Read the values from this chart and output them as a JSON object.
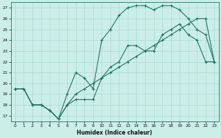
{
  "xlabel": "Humidex (Indice chaleur)",
  "bg_color": "#cceee8",
  "line_color": "#1a7060",
  "grid_color": "#a8d8d0",
  "xlim": [
    -0.5,
    23.5
  ],
  "ylim": [
    16.5,
    27.5
  ],
  "xticks": [
    0,
    1,
    2,
    3,
    4,
    5,
    6,
    7,
    8,
    9,
    10,
    11,
    12,
    13,
    14,
    15,
    16,
    17,
    18,
    19,
    20,
    21,
    22,
    23
  ],
  "yticks": [
    17,
    18,
    19,
    20,
    21,
    22,
    23,
    24,
    25,
    26,
    27
  ],
  "line1_x": [
    0,
    1,
    2,
    3,
    4,
    5,
    6,
    7,
    8,
    9,
    10,
    11,
    12,
    13,
    14,
    15,
    16,
    17,
    18,
    19,
    20,
    21,
    22,
    23
  ],
  "line1_y": [
    19.5,
    19.5,
    18.0,
    18.0,
    17.5,
    16.7,
    18.0,
    18.5,
    18.5,
    18.5,
    20.5,
    21.5,
    22.0,
    23.5,
    23.5,
    23.0,
    23.0,
    24.5,
    25.0,
    25.5,
    24.5,
    24.0,
    22.0,
    22.0
  ],
  "line2_x": [
    0,
    1,
    2,
    3,
    4,
    5,
    6,
    7,
    8,
    9,
    10,
    11,
    12,
    13,
    14,
    15,
    16,
    17,
    18,
    19,
    20,
    21,
    22,
    23
  ],
  "line2_y": [
    19.5,
    19.5,
    18.0,
    18.0,
    17.5,
    16.7,
    19.0,
    21.0,
    20.5,
    19.5,
    24.0,
    25.0,
    26.3,
    27.0,
    27.2,
    27.2,
    26.8,
    27.2,
    27.2,
    26.8,
    26.0,
    25.0,
    24.5,
    22.0
  ],
  "line3_x": [
    0,
    1,
    2,
    3,
    4,
    5,
    6,
    7,
    8,
    9,
    10,
    11,
    12,
    13,
    14,
    15,
    16,
    17,
    18,
    19,
    20,
    21,
    22,
    23
  ],
  "line3_y": [
    19.5,
    19.5,
    18.0,
    18.0,
    17.5,
    16.7,
    18.0,
    19.0,
    19.5,
    20.0,
    20.5,
    21.0,
    21.5,
    22.0,
    22.5,
    23.0,
    23.5,
    24.0,
    24.5,
    25.0,
    25.5,
    26.0,
    26.0,
    22.0
  ]
}
